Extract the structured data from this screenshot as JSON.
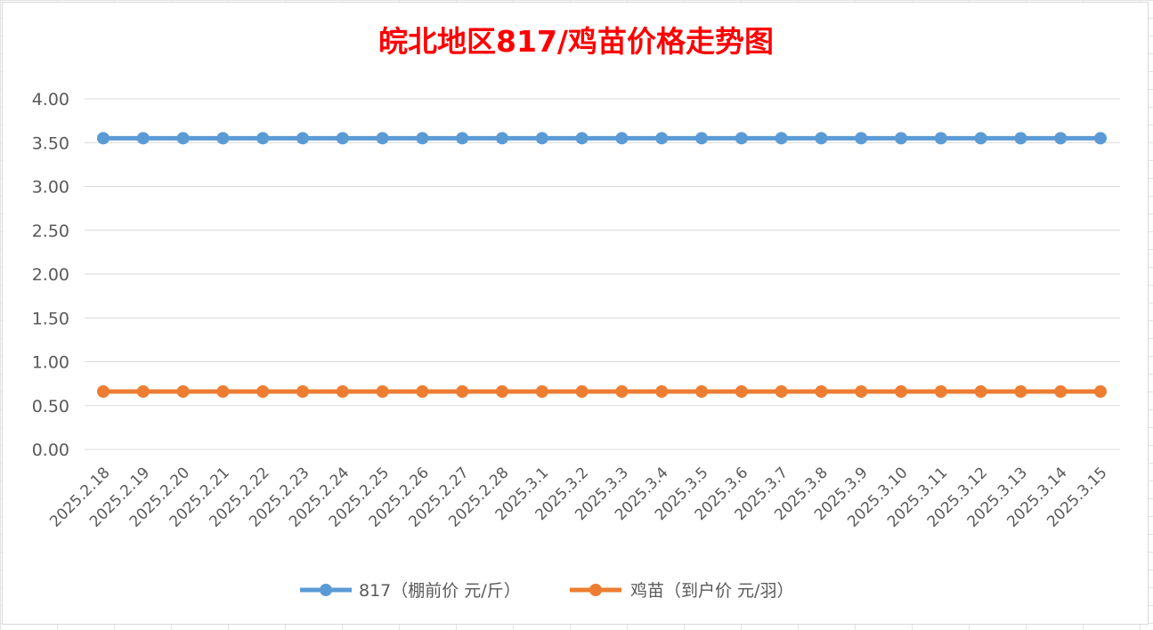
{
  "chart_data": {
    "type": "line",
    "title": "皖北地区817/鸡苗价格走势图",
    "xlabel": "",
    "ylabel": "",
    "ylim": [
      0,
      4
    ],
    "yticks": [
      "0.00",
      "0.50",
      "1.00",
      "1.50",
      "2.00",
      "2.50",
      "3.00",
      "3.50",
      "4.00"
    ],
    "categories": [
      "2025.2.18",
      "2025.2.19",
      "2025.2.20",
      "2025.2.21",
      "2025.2.22",
      "2025.2.23",
      "2025.2.24",
      "2025.2.25",
      "2025.2.26",
      "2025.2.27",
      "2025.2.28",
      "2025.3.1",
      "2025.3.2",
      "2025.3.3",
      "2025.3.4",
      "2025.3.5",
      "2025.3.6",
      "2025.3.7",
      "2025.3.8",
      "2025.3.9",
      "2025.3.10",
      "2025.3.11",
      "2025.3.12",
      "2025.3.13",
      "2025.3.14",
      "2025.3.15"
    ],
    "series": [
      {
        "name": "817（棚前价 元/斤）",
        "color": "#5b9bd5",
        "values": [
          3.55,
          3.55,
          3.55,
          3.55,
          3.55,
          3.55,
          3.55,
          3.55,
          3.55,
          3.55,
          3.55,
          3.55,
          3.55,
          3.55,
          3.55,
          3.55,
          3.55,
          3.55,
          3.55,
          3.55,
          3.55,
          3.55,
          3.55,
          3.55,
          3.55,
          3.55
        ]
      },
      {
        "name": "鸡苗（到户价 元/羽）",
        "color": "#ed7d31",
        "values": [
          0.66,
          0.66,
          0.66,
          0.66,
          0.66,
          0.66,
          0.66,
          0.66,
          0.66,
          0.66,
          0.66,
          0.66,
          0.66,
          0.66,
          0.66,
          0.66,
          0.66,
          0.66,
          0.66,
          0.66,
          0.66,
          0.66,
          0.66,
          0.66,
          0.66,
          0.66
        ]
      }
    ],
    "grid": true,
    "legend_position": "bottom"
  }
}
